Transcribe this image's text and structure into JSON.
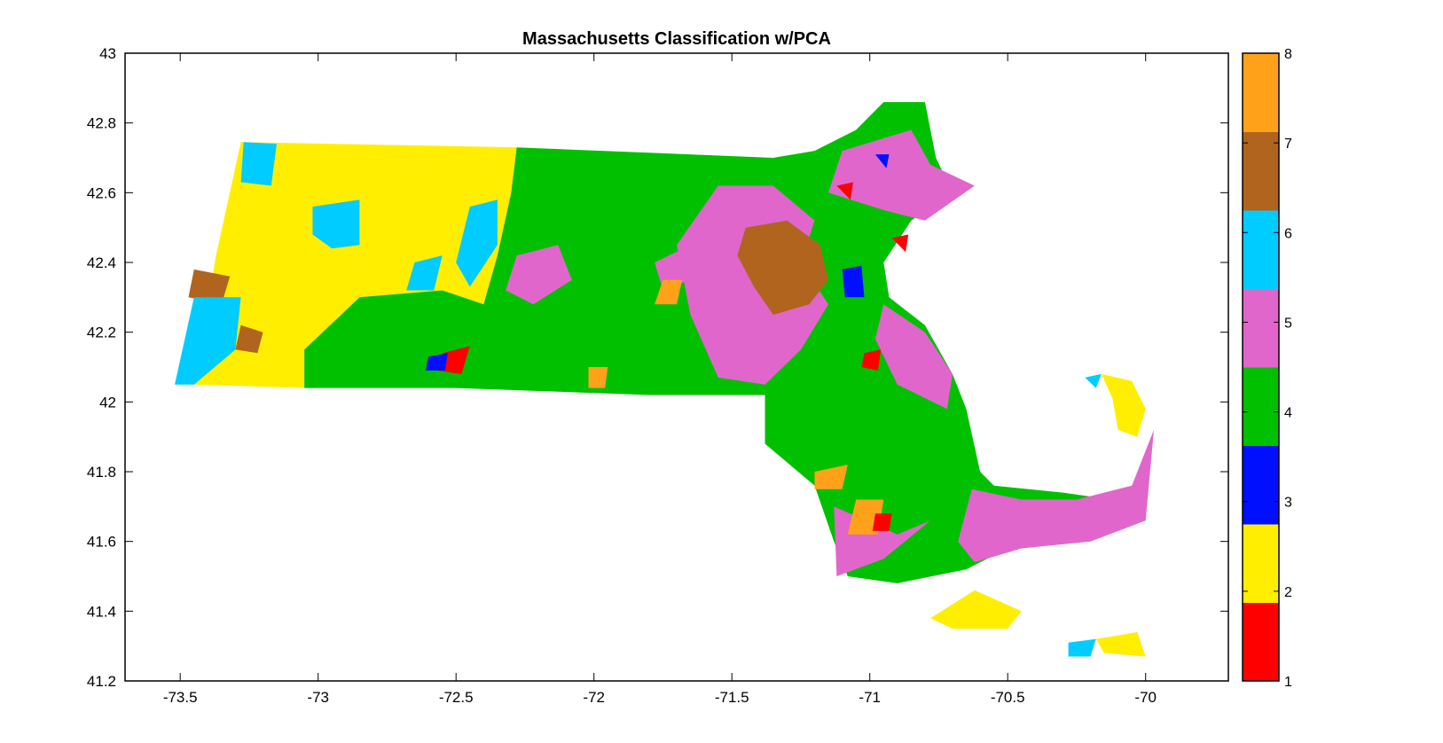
{
  "chart_data": {
    "type": "heatmap",
    "title": "Massachusetts Classification w/PCA",
    "xlabel": "",
    "ylabel": "",
    "xlim": [
      -73.7,
      -69.7
    ],
    "ylim": [
      41.2,
      43.0
    ],
    "xticks": [
      -73.5,
      -73,
      -72.5,
      -72,
      -71.5,
      -71,
      -70.5,
      -70
    ],
    "yticks": [
      41.2,
      41.4,
      41.6,
      41.8,
      42,
      42.2,
      42.4,
      42.6,
      42.8,
      43
    ],
    "grid": false,
    "colorbar": {
      "range": [
        1,
        8
      ],
      "ticks": [
        1,
        2,
        3,
        4,
        5,
        6,
        7,
        8
      ],
      "classes": [
        {
          "value": 1,
          "color": "#ff0000"
        },
        {
          "value": 2,
          "color": "#ffee00"
        },
        {
          "value": 3,
          "color": "#0010ff"
        },
        {
          "value": 4,
          "color": "#00c000"
        },
        {
          "value": 5,
          "color": "#e066cc"
        },
        {
          "value": 6,
          "color": "#00ccff"
        },
        {
          "value": 7,
          "color": "#b0641e"
        },
        {
          "value": 8,
          "color": "#ffa21a"
        }
      ]
    },
    "regions": [
      {
        "class": 2,
        "points": [
          [
            -73.28,
            42.745
          ],
          [
            -72.28,
            42.73
          ],
          [
            -72.3,
            42.6
          ],
          [
            -72.35,
            42.42
          ],
          [
            -72.4,
            42.28
          ],
          [
            -72.5,
            42.24
          ],
          [
            -72.6,
            42.14
          ],
          [
            -72.8,
            42.05
          ],
          [
            -73.05,
            42.04
          ],
          [
            -73.45,
            42.05
          ],
          [
            -73.37,
            42.42
          ]
        ]
      },
      {
        "class": 4,
        "points": [
          [
            -72.28,
            42.73
          ],
          [
            -71.35,
            42.7
          ],
          [
            -71.2,
            42.72
          ],
          [
            -71.05,
            42.78
          ],
          [
            -70.95,
            42.86
          ],
          [
            -70.8,
            42.86
          ],
          [
            -70.76,
            42.7
          ],
          [
            -70.7,
            42.6
          ],
          [
            -70.85,
            42.52
          ],
          [
            -70.95,
            42.4
          ],
          [
            -70.93,
            42.3
          ],
          [
            -70.8,
            42.22
          ],
          [
            -70.7,
            42.08
          ],
          [
            -70.65,
            41.98
          ],
          [
            -70.6,
            41.8
          ],
          [
            -70.55,
            41.76
          ],
          [
            -70.3,
            41.74
          ],
          [
            -70.12,
            41.72
          ],
          [
            -70.05,
            41.66
          ],
          [
            -70.2,
            41.62
          ],
          [
            -70.45,
            41.6
          ],
          [
            -70.65,
            41.52
          ],
          [
            -70.9,
            41.48
          ],
          [
            -71.08,
            41.5
          ],
          [
            -71.13,
            41.6
          ],
          [
            -71.2,
            41.76
          ],
          [
            -71.38,
            41.88
          ],
          [
            -71.38,
            42.02
          ],
          [
            -71.8,
            42.02
          ],
          [
            -72.5,
            42.04
          ],
          [
            -73.05,
            42.04
          ],
          [
            -73.05,
            42.15
          ],
          [
            -72.85,
            42.3
          ],
          [
            -72.55,
            42.32
          ],
          [
            -72.4,
            42.28
          ],
          [
            -72.35,
            42.42
          ],
          [
            -72.3,
            42.6
          ]
        ]
      },
      {
        "class": 5,
        "points": [
          [
            -71.55,
            42.62
          ],
          [
            -71.35,
            42.62
          ],
          [
            -71.2,
            42.52
          ],
          [
            -71.25,
            42.4
          ],
          [
            -71.15,
            42.28
          ],
          [
            -71.25,
            42.15
          ],
          [
            -71.38,
            42.05
          ],
          [
            -71.55,
            42.07
          ],
          [
            -71.65,
            42.25
          ],
          [
            -71.7,
            42.45
          ]
        ]
      },
      {
        "class": 5,
        "points": [
          [
            -71.1,
            42.72
          ],
          [
            -70.85,
            42.78
          ],
          [
            -70.78,
            42.68
          ],
          [
            -70.62,
            42.62
          ],
          [
            -70.8,
            42.52
          ],
          [
            -70.95,
            42.55
          ],
          [
            -71.15,
            42.6
          ]
        ]
      },
      {
        "class": 5,
        "points": [
          [
            -70.95,
            42.28
          ],
          [
            -70.8,
            42.2
          ],
          [
            -70.7,
            42.08
          ],
          [
            -70.72,
            41.98
          ],
          [
            -70.9,
            42.05
          ],
          [
            -70.98,
            42.18
          ]
        ]
      },
      {
        "class": 5,
        "points": [
          [
            -70.63,
            41.75
          ],
          [
            -70.45,
            41.72
          ],
          [
            -70.25,
            41.72
          ],
          [
            -70.05,
            41.76
          ],
          [
            -69.97,
            41.92
          ],
          [
            -70.0,
            41.66
          ],
          [
            -70.2,
            41.6
          ],
          [
            -70.45,
            41.58
          ],
          [
            -70.62,
            41.54
          ],
          [
            -70.68,
            41.6
          ]
        ]
      },
      {
        "class": 5,
        "points": [
          [
            -71.13,
            41.7
          ],
          [
            -70.9,
            41.62
          ],
          [
            -70.78,
            41.66
          ],
          [
            -70.95,
            41.55
          ],
          [
            -71.12,
            41.5
          ]
        ]
      },
      {
        "class": 5,
        "points": [
          [
            -72.28,
            42.42
          ],
          [
            -72.13,
            42.45
          ],
          [
            -72.08,
            42.35
          ],
          [
            -72.22,
            42.28
          ],
          [
            -72.32,
            42.32
          ]
        ]
      },
      {
        "class": 5,
        "points": [
          [
            -71.78,
            42.4
          ],
          [
            -71.65,
            42.45
          ],
          [
            -71.62,
            42.36
          ],
          [
            -71.75,
            42.32
          ]
        ]
      },
      {
        "class": 7,
        "points": [
          [
            -71.45,
            42.5
          ],
          [
            -71.3,
            42.52
          ],
          [
            -71.18,
            42.45
          ],
          [
            -71.15,
            42.35
          ],
          [
            -71.22,
            42.28
          ],
          [
            -71.35,
            42.25
          ],
          [
            -71.42,
            42.33
          ],
          [
            -71.48,
            42.42
          ]
        ]
      },
      {
        "class": 7,
        "points": [
          [
            -73.45,
            42.38
          ],
          [
            -73.32,
            42.36
          ],
          [
            -73.35,
            42.28
          ],
          [
            -73.47,
            42.3
          ]
        ]
      },
      {
        "class": 7,
        "points": [
          [
            -73.28,
            42.22
          ],
          [
            -73.2,
            42.2
          ],
          [
            -73.22,
            42.14
          ],
          [
            -73.3,
            42.15
          ]
        ]
      },
      {
        "class": 6,
        "points": [
          [
            -73.27,
            42.745
          ],
          [
            -73.15,
            42.74
          ],
          [
            -73.17,
            42.62
          ],
          [
            -73.28,
            42.63
          ]
        ]
      },
      {
        "class": 6,
        "points": [
          [
            -73.45,
            42.3
          ],
          [
            -73.28,
            42.3
          ],
          [
            -73.3,
            42.15
          ],
          [
            -73.45,
            42.05
          ],
          [
            -73.52,
            42.05
          ]
        ]
      },
      {
        "class": 6,
        "points": [
          [
            -73.02,
            42.56
          ],
          [
            -72.85,
            42.58
          ],
          [
            -72.85,
            42.45
          ],
          [
            -72.95,
            42.44
          ],
          [
            -73.02,
            42.48
          ]
        ]
      },
      {
        "class": 6,
        "points": [
          [
            -72.65,
            42.4
          ],
          [
            -72.55,
            42.42
          ],
          [
            -72.58,
            42.32
          ],
          [
            -72.68,
            42.32
          ]
        ]
      },
      {
        "class": 6,
        "points": [
          [
            -72.45,
            42.56
          ],
          [
            -72.35,
            42.58
          ],
          [
            -72.35,
            42.45
          ],
          [
            -72.45,
            42.33
          ],
          [
            -72.5,
            42.4
          ]
        ]
      },
      {
        "class": 6,
        "points": [
          [
            -70.22,
            42.07
          ],
          [
            -70.16,
            42.08
          ],
          [
            -70.18,
            42.04
          ]
        ]
      },
      {
        "class": 6,
        "points": [
          [
            -70.28,
            41.31
          ],
          [
            -70.18,
            41.32
          ],
          [
            -70.2,
            41.27
          ],
          [
            -70.28,
            41.27
          ]
        ]
      },
      {
        "class": 2,
        "points": [
          [
            -70.16,
            42.08
          ],
          [
            -70.05,
            42.06
          ],
          [
            -70.0,
            41.98
          ],
          [
            -70.03,
            41.9
          ],
          [
            -70.1,
            41.92
          ],
          [
            -70.12,
            42.01
          ]
        ]
      },
      {
        "class": 2,
        "points": [
          [
            -70.18,
            41.32
          ],
          [
            -70.03,
            41.34
          ],
          [
            -70.0,
            41.27
          ],
          [
            -70.15,
            41.28
          ]
        ]
      },
      {
        "class": 2,
        "points": [
          [
            -70.62,
            41.46
          ],
          [
            -70.45,
            41.4
          ],
          [
            -70.5,
            41.35
          ],
          [
            -70.7,
            41.35
          ],
          [
            -70.78,
            41.38
          ]
        ]
      },
      {
        "class": 8,
        "points": [
          [
            -71.05,
            41.72
          ],
          [
            -70.95,
            41.72
          ],
          [
            -70.97,
            41.62
          ],
          [
            -71.08,
            41.62
          ]
        ]
      },
      {
        "class": 8,
        "points": [
          [
            -71.2,
            41.8
          ],
          [
            -71.08,
            41.82
          ],
          [
            -71.1,
            41.75
          ],
          [
            -71.2,
            41.75
          ]
        ]
      },
      {
        "class": 8,
        "points": [
          [
            -71.75,
            42.35
          ],
          [
            -71.68,
            42.35
          ],
          [
            -71.7,
            42.28
          ],
          [
            -71.78,
            42.28
          ]
        ]
      },
      {
        "class": 8,
        "points": [
          [
            -72.02,
            42.1
          ],
          [
            -71.95,
            42.1
          ],
          [
            -71.96,
            42.04
          ],
          [
            -72.02,
            42.04
          ]
        ]
      },
      {
        "class": 1,
        "points": [
          [
            -72.55,
            42.14
          ],
          [
            -72.45,
            42.16
          ],
          [
            -72.48,
            42.08
          ],
          [
            -72.57,
            42.09
          ]
        ]
      },
      {
        "class": 1,
        "points": [
          [
            -71.02,
            42.14
          ],
          [
            -70.96,
            42.15
          ],
          [
            -70.97,
            42.09
          ],
          [
            -71.03,
            42.1
          ]
        ]
      },
      {
        "class": 1,
        "points": [
          [
            -70.98,
            41.68
          ],
          [
            -70.92,
            41.68
          ],
          [
            -70.93,
            41.63
          ],
          [
            -70.99,
            41.63
          ]
        ]
      },
      {
        "class": 1,
        "points": [
          [
            -71.12,
            42.62
          ],
          [
            -71.06,
            42.63
          ],
          [
            -71.07,
            42.58
          ]
        ]
      },
      {
        "class": 1,
        "points": [
          [
            -70.92,
            42.47
          ],
          [
            -70.86,
            42.48
          ],
          [
            -70.87,
            42.43
          ]
        ]
      },
      {
        "class": 3,
        "points": [
          [
            -72.6,
            42.13
          ],
          [
            -72.53,
            42.14
          ],
          [
            -72.54,
            42.09
          ],
          [
            -72.61,
            42.09
          ]
        ]
      },
      {
        "class": 3,
        "points": [
          [
            -71.1,
            42.38
          ],
          [
            -71.03,
            42.39
          ],
          [
            -71.02,
            42.3
          ],
          [
            -71.09,
            42.3
          ]
        ]
      },
      {
        "class": 3,
        "points": [
          [
            -70.98,
            42.71
          ],
          [
            -70.93,
            42.71
          ],
          [
            -70.94,
            42.67
          ]
        ]
      }
    ]
  }
}
